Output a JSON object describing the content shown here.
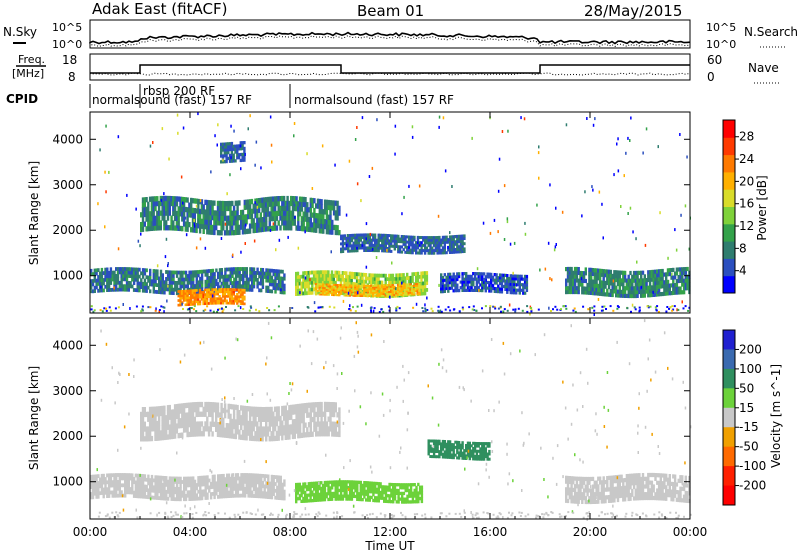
{
  "header": {
    "station": "Adak East (fitACF)",
    "beam": "Beam 01",
    "date": "28/May/2015"
  },
  "top_panels": {
    "nsky_label": "N.Sky",
    "nsearch_label": "N.Search",
    "noise_ticks": [
      "10^5",
      "10^0"
    ],
    "freq_label_1": "Freq.",
    "freq_label_2": "[MHz]",
    "freq_ticks": [
      "18",
      "8"
    ],
    "nave_label": "Nave",
    "nave_ticks": [
      "60",
      "0"
    ],
    "cpid_label": "CPID",
    "cpid_segments": [
      {
        "text": "normalsound (fast) 157 RF"
      },
      {
        "text": "rbsp 200 RF"
      },
      {
        "text": "normalsound (fast) 157 RF"
      }
    ]
  },
  "x_axis": {
    "label": "Time UT",
    "ticks": [
      "00:00",
      "04:00",
      "08:00",
      "12:00",
      "16:00",
      "20:00",
      "00:00"
    ]
  },
  "chart_data": [
    {
      "type": "heatmap",
      "ylabel": "Slant Range [km]",
      "yticks": [
        1000,
        2000,
        3000,
        4000
      ],
      "ylim": [
        180,
        4600
      ],
      "xlim_hours": [
        0,
        24
      ],
      "colorbar": {
        "label": "Power [dB]",
        "ticks": [
          4,
          8,
          12,
          16,
          20,
          24,
          28
        ],
        "range": [
          0,
          31
        ],
        "colors": [
          "#0000ff",
          "#2b4fbf",
          "#2f7d6f",
          "#33a24a",
          "#7fd23a",
          "#d9dc2a",
          "#ffb000",
          "#ff7a00",
          "#ff3a00",
          "#ff0000"
        ]
      },
      "bands": [
        {
          "t_start": 0.0,
          "t_end": 7.8,
          "range_start": 620,
          "range_end": 1150,
          "value": 7
        },
        {
          "t_start": 3.5,
          "t_end": 6.2,
          "range_start": 350,
          "range_end": 700,
          "value": 22
        },
        {
          "t_start": 8.2,
          "t_end": 13.5,
          "range_start": 560,
          "range_end": 1080,
          "value": 15
        },
        {
          "t_start": 9.0,
          "t_end": 13.2,
          "range_start": 560,
          "range_end": 820,
          "value": 20
        },
        {
          "t_start": 2.0,
          "t_end": 10.0,
          "range_start": 1950,
          "range_end": 2700,
          "value": 8
        },
        {
          "t_start": 5.2,
          "t_end": 6.2,
          "range_start": 3500,
          "range_end": 3950,
          "value": 6
        },
        {
          "t_start": 10.0,
          "t_end": 15.0,
          "range_start": 1500,
          "range_end": 1900,
          "value": 6
        },
        {
          "t_start": 14.0,
          "t_end": 17.5,
          "range_start": 620,
          "range_end": 1050,
          "value": 5
        },
        {
          "t_start": 19.0,
          "t_end": 24.0,
          "range_start": 560,
          "range_end": 1150,
          "value": 8
        }
      ]
    },
    {
      "type": "heatmap",
      "ylabel": "Slant Range [km]",
      "yticks": [
        1000,
        2000,
        3000,
        4000
      ],
      "ylim": [
        180,
        4600
      ],
      "xlim_hours": [
        0,
        24
      ],
      "colorbar": {
        "label": "Velocity [m s^-1]",
        "ticks": [
          200,
          100,
          50,
          15,
          -15,
          -50,
          -100,
          -200
        ],
        "colors": [
          "#2020d0",
          "#3a6ab0",
          "#2f8f5f",
          "#6cd23a",
          "#c8c8c8",
          "#f0a000",
          "#ff6a00",
          "#ff2000",
          "#ff0000"
        ]
      },
      "bands": [
        {
          "t_start": 0.0,
          "t_end": 7.8,
          "range_start": 620,
          "range_end": 1150,
          "value": 0
        },
        {
          "t_start": 8.2,
          "t_end": 13.3,
          "range_start": 560,
          "range_end": 1000,
          "value": 40
        },
        {
          "t_start": 2.0,
          "t_end": 10.0,
          "range_start": 1950,
          "range_end": 2700,
          "value": 0
        },
        {
          "t_start": 13.5,
          "t_end": 16.0,
          "range_start": 1500,
          "range_end": 1900,
          "value": 60
        },
        {
          "t_start": 19.0,
          "t_end": 24.0,
          "range_start": 560,
          "range_end": 1150,
          "value": 0
        }
      ]
    }
  ]
}
